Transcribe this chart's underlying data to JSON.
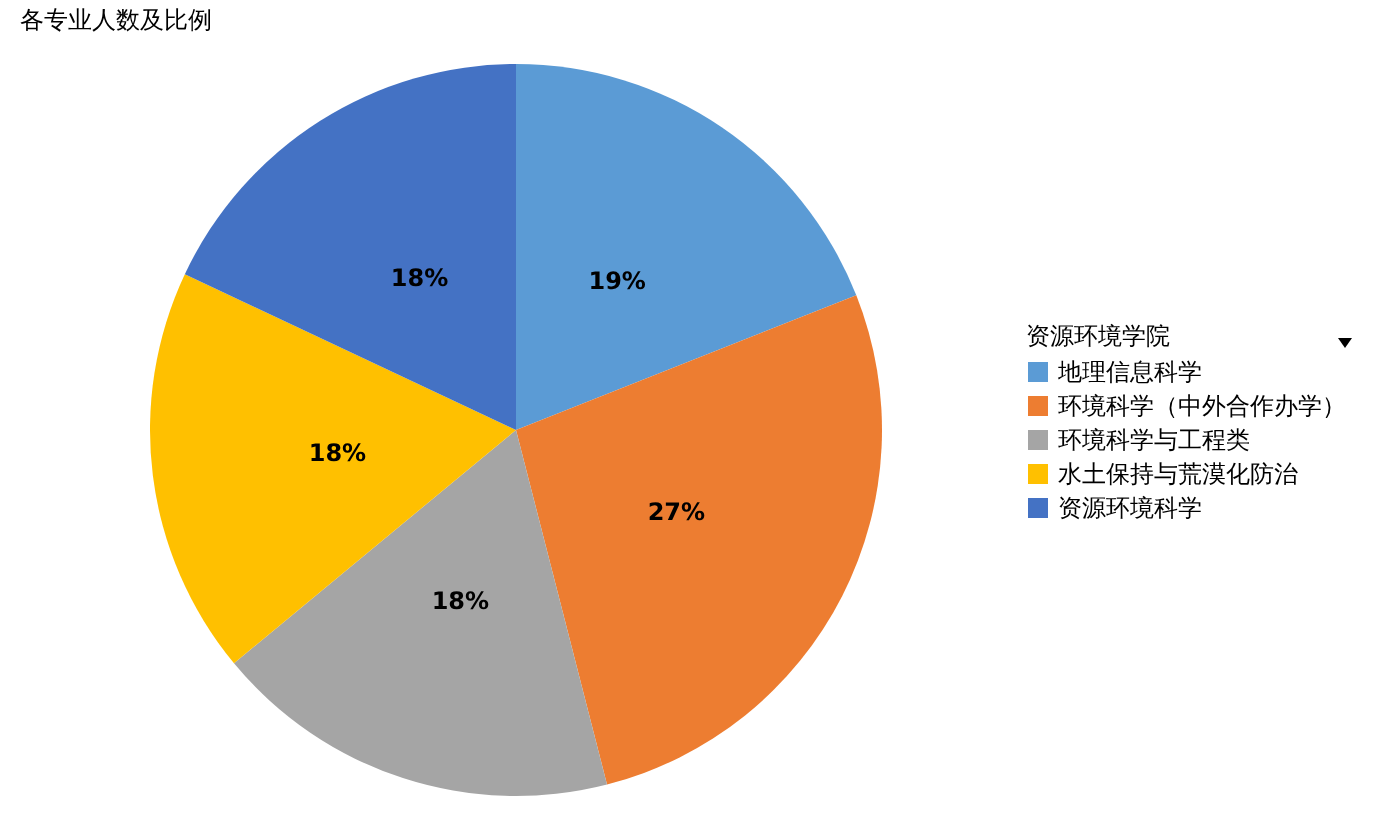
{
  "chart_data": {
    "type": "pie",
    "title": "各专业人数及比例",
    "legend_title": "资源环境学院",
    "categories": [
      "地理信息科学",
      "环境科学（中外合作办学）",
      "环境科学与工程类",
      "水土保持与荒漠化防治",
      "资源环境科学"
    ],
    "values": [
      19,
      27,
      18,
      18,
      18
    ],
    "colors": [
      "#5b9bd5",
      "#ed7d31",
      "#a5a5a5",
      "#ffc000",
      "#4472c4"
    ],
    "value_labels": [
      "19%",
      "27%",
      "18%",
      "18%",
      "18%"
    ],
    "legend": "right"
  }
}
